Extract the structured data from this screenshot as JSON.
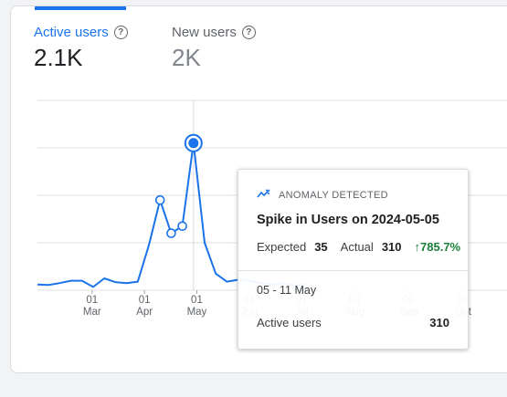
{
  "metrics": {
    "active_users": {
      "label": "Active users",
      "value": "2.1K"
    },
    "new_users": {
      "label": "New users",
      "value": "2K"
    }
  },
  "chart_data": {
    "type": "line",
    "series": [
      {
        "values": [
          12,
          11,
          15,
          20,
          20,
          7,
          25,
          17,
          15,
          18,
          95,
          190,
          120,
          135,
          310,
          100,
          35,
          18,
          22,
          20,
          15,
          12,
          15,
          10,
          12
        ]
      }
    ],
    "x_ticks": [
      {
        "day": "01",
        "month": "Mar",
        "index": 4.9
      },
      {
        "day": "01",
        "month": "Apr",
        "index": 9.6
      },
      {
        "day": "01",
        "month": "May",
        "index": 14.3
      },
      {
        "day": "01",
        "month": "Jun",
        "index": 19.0
      },
      {
        "day": "01",
        "month": "Jul",
        "index": 23.7
      },
      {
        "day": "01",
        "month": "Aug",
        "index": 28.5
      },
      {
        "day": "01",
        "month": "Sep",
        "index": 33.3
      },
      {
        "day": "01",
        "month": "Oct",
        "index": 38.2
      }
    ],
    "anomaly_indices": [
      11,
      12,
      13,
      14
    ],
    "highlight_index": 14,
    "ylim": [
      0,
      400
    ],
    "grid": true
  },
  "tooltip": {
    "header": "ANOMALY DETECTED",
    "title": "Spike in Users on 2024-05-05",
    "expected_label": "Expected",
    "expected_value": "35",
    "actual_label": "Actual",
    "actual_value": "310",
    "delta": "↑785.7%",
    "range": "05 - 11 May",
    "metric_label": "Active users",
    "metric_value": "310"
  },
  "colors": {
    "accent": "#1a73e8",
    "positive": "#188038",
    "grid": "#e0e0e0"
  }
}
